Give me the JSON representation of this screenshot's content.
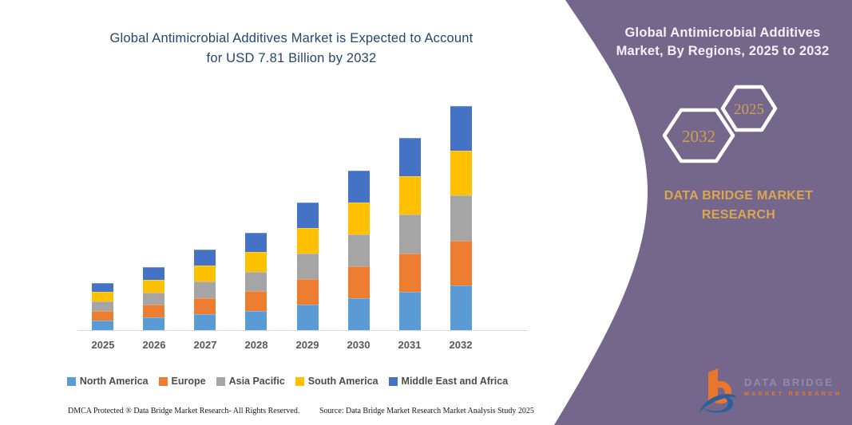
{
  "left_panel": {
    "title_lines": [
      "Global Antimicrobial Additives Market is Expected to Account",
      "for USD 7.81 Billion by 2032"
    ],
    "title_color": "#24466E",
    "footer_left": "DMCA Protected ® Data Bridge Market Research-  All Rights Reserved.",
    "footer_right": "Source: Data Bridge Market Research  Market Analysis Study 2025"
  },
  "right_panel": {
    "background_color": "#75668C",
    "heading_lines": [
      "Global Antimicrobial Additives",
      "Market, By Regions, 2025 to 2032"
    ],
    "hexagons": [
      {
        "label": "2032"
      },
      {
        "label": "2025"
      }
    ],
    "brand_lines": [
      "DATA BRIDGE MARKET",
      "RESEARCH"
    ],
    "accent_gold": "#D9A74E",
    "logo": {
      "line1": "DATA BRIDGE",
      "line2": "MARKET RESEARCH",
      "icon_orange": "#E8762D",
      "icon_blue": "#2D5F9B"
    }
  },
  "chart_data": {
    "type": "bar",
    "stacked": true,
    "title": "Global Antimicrobial Additives Market is Expected to Account for USD 7.81 Billion by 2032",
    "unit": "USD Billion",
    "categories": [
      "2025",
      "2026",
      "2027",
      "2028",
      "2029",
      "2030",
      "2031",
      "2032"
    ],
    "series": [
      {
        "name": "North America",
        "color": "#5B9BD5",
        "values": [
          0.33,
          0.44,
          0.56,
          0.68,
          0.89,
          1.11,
          1.34,
          1.56
        ]
      },
      {
        "name": "Europe",
        "color": "#ED7D31",
        "values": [
          0.33,
          0.44,
          0.56,
          0.68,
          0.89,
          1.11,
          1.34,
          1.56
        ]
      },
      {
        "name": "Asia Pacific",
        "color": "#A5A5A5",
        "values": [
          0.33,
          0.44,
          0.56,
          0.68,
          0.89,
          1.11,
          1.34,
          1.56
        ]
      },
      {
        "name": "South America",
        "color": "#FFC000",
        "values": [
          0.33,
          0.44,
          0.56,
          0.68,
          0.89,
          1.11,
          1.34,
          1.56
        ]
      },
      {
        "name": "Middle East and Africa",
        "color": "#4472C4",
        "values": [
          0.33,
          0.44,
          0.56,
          0.68,
          0.89,
          1.11,
          1.34,
          1.56
        ]
      }
    ],
    "totals_usd_billion": [
      1.65,
      2.2,
      2.8,
      3.4,
      4.45,
      5.55,
      6.7,
      7.81
    ],
    "ylim": [
      0,
      8.2
    ],
    "gridlines": false,
    "y_axis": "hidden",
    "legend_position": "bottom"
  }
}
